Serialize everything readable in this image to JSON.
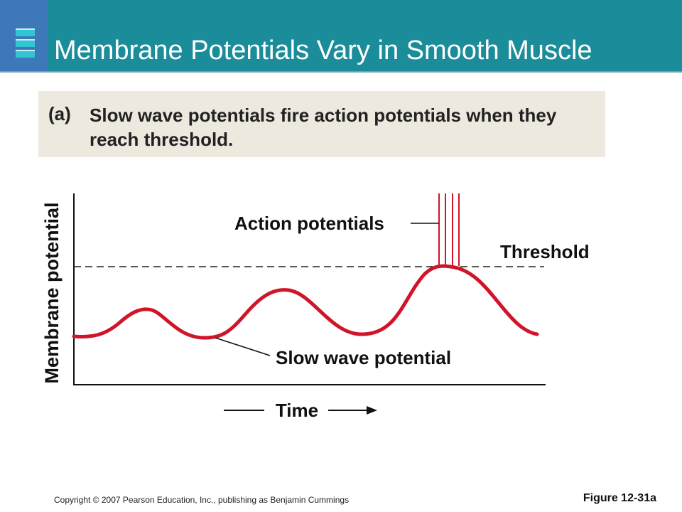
{
  "slide": {
    "title": "Membrane Potentials Vary in Smooth Muscle",
    "caption": {
      "letter": "(a)",
      "bold": "Slow wave potentials",
      "rest": " fire action potentials when they reach threshold."
    },
    "copyright": "Copyright © 2007 Pearson Education, Inc., publishing as Benjamin Cummings",
    "figure_label": "Figure 12-31a"
  },
  "diagram": {
    "y_axis_label": "Membrane potential",
    "x_axis_label": "Time",
    "label_action": "Action potentials",
    "label_threshold": "Threshold",
    "label_slow_wave": "Slow wave potential"
  },
  "colors": {
    "header": "#1b8c9a",
    "logo": "#3d79b8",
    "caption_bg": "#ede9de",
    "wave": "#d0142a"
  }
}
